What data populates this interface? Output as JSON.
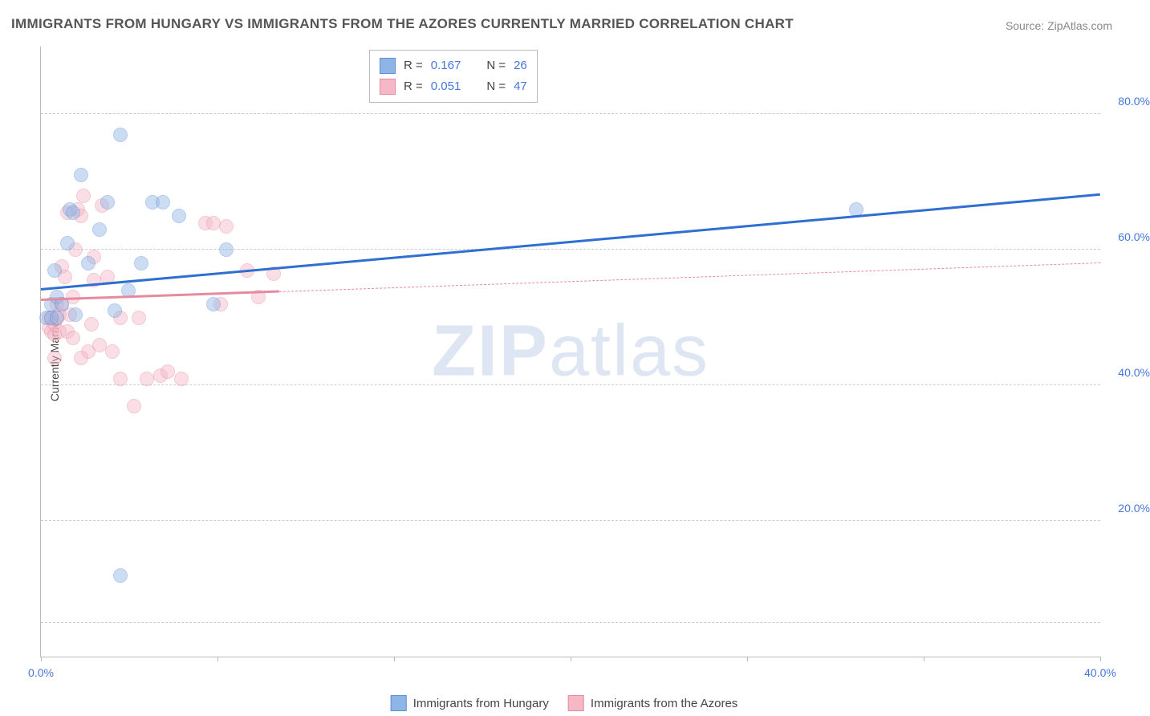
{
  "title": "IMMIGRANTS FROM HUNGARY VS IMMIGRANTS FROM THE AZORES CURRENTLY MARRIED CORRELATION CHART",
  "source": "Source: ZipAtlas.com",
  "watermark": "ZIPatlas",
  "y_axis_title": "Currently Married",
  "chart": {
    "type": "scatter",
    "background_color": "#ffffff",
    "grid_color": "#cccccc",
    "axis_color": "#bbbbbb",
    "xlim": [
      0,
      40
    ],
    "ylim": [
      0,
      90
    ],
    "x_ticks": [
      0,
      6.67,
      13.33,
      20,
      26.67,
      33.33,
      40
    ],
    "x_tick_labels": {
      "0": "0.0%",
      "40": "40.0%"
    },
    "y_gridlines": [
      5,
      20,
      40,
      60,
      80
    ],
    "y_tick_labels": {
      "20": "20.0%",
      "40": "40.0%",
      "60": "60.0%",
      "80": "80.0%"
    },
    "point_radius": 8,
    "point_border_width": 1,
    "point_fill_opacity": 0.45,
    "trend_line_width": 3
  },
  "series": {
    "hungary": {
      "label": "Immigrants from Hungary",
      "fill_color": "#8fb5e6",
      "border_color": "#5a8fd6",
      "trend_color": "#2f6fd0",
      "R": "0.167",
      "N": "26",
      "trend": {
        "x1": 0,
        "y1": 54,
        "x2": 40,
        "y2": 68,
        "solid_until_x": 40
      },
      "points": [
        [
          0.2,
          50
        ],
        [
          0.4,
          52
        ],
        [
          0.4,
          50
        ],
        [
          0.5,
          57
        ],
        [
          0.6,
          53
        ],
        [
          0.8,
          52
        ],
        [
          1.0,
          61
        ],
        [
          1.1,
          66
        ],
        [
          1.2,
          65.5
        ],
        [
          1.3,
          50.5
        ],
        [
          1.5,
          71
        ],
        [
          1.8,
          58
        ],
        [
          2.2,
          63
        ],
        [
          2.5,
          67
        ],
        [
          2.8,
          51
        ],
        [
          3.0,
          77
        ],
        [
          3.3,
          54
        ],
        [
          3.8,
          58
        ],
        [
          4.2,
          67
        ],
        [
          4.6,
          67
        ],
        [
          5.2,
          65
        ],
        [
          6.5,
          52
        ],
        [
          7.0,
          60
        ],
        [
          3.0,
          12
        ],
        [
          30.8,
          66
        ],
        [
          0.6,
          50
        ]
      ]
    },
    "azores": {
      "label": "Immigrants from the Azores",
      "fill_color": "#f6b8c6",
      "border_color": "#e68aa0",
      "trend_color": "#e68aa0",
      "R": "0.051",
      "N": "47",
      "trend": {
        "x1": 0,
        "y1": 52.5,
        "x2": 40,
        "y2": 58,
        "solid_until_x": 9
      },
      "points": [
        [
          0.3,
          48.5
        ],
        [
          0.3,
          50
        ],
        [
          0.4,
          50
        ],
        [
          0.4,
          48
        ],
        [
          0.5,
          47.5
        ],
        [
          0.5,
          49
        ],
        [
          0.6,
          50
        ],
        [
          0.6,
          52
        ],
        [
          0.7,
          48
        ],
        [
          0.7,
          50.5
        ],
        [
          0.8,
          57.5
        ],
        [
          0.8,
          52
        ],
        [
          0.9,
          56
        ],
        [
          1.0,
          48
        ],
        [
          1.0,
          65.5
        ],
        [
          1.1,
          50.5
        ],
        [
          1.2,
          47
        ],
        [
          1.2,
          53
        ],
        [
          1.3,
          60
        ],
        [
          1.4,
          66
        ],
        [
          1.5,
          65
        ],
        [
          1.6,
          68
        ],
        [
          1.8,
          45
        ],
        [
          1.9,
          49
        ],
        [
          2.0,
          55.5
        ],
        [
          2.0,
          59
        ],
        [
          2.2,
          46
        ],
        [
          2.3,
          66.5
        ],
        [
          2.5,
          56
        ],
        [
          2.7,
          45
        ],
        [
          3.0,
          41
        ],
        [
          3.0,
          50
        ],
        [
          3.5,
          37
        ],
        [
          3.7,
          50
        ],
        [
          4.0,
          41
        ],
        [
          4.5,
          41.5
        ],
        [
          4.8,
          42
        ],
        [
          5.3,
          41
        ],
        [
          6.2,
          64
        ],
        [
          6.5,
          64
        ],
        [
          6.8,
          52
        ],
        [
          7.0,
          63.5
        ],
        [
          7.8,
          57
        ],
        [
          8.2,
          53
        ],
        [
          8.8,
          56.5
        ],
        [
          1.5,
          44
        ],
        [
          0.5,
          44
        ]
      ]
    }
  },
  "legend_box": {
    "rows": [
      {
        "series": "hungary",
        "r_label": "R  =",
        "n_label": "N  ="
      },
      {
        "series": "azores",
        "r_label": "R  =",
        "n_label": "N  ="
      }
    ]
  }
}
